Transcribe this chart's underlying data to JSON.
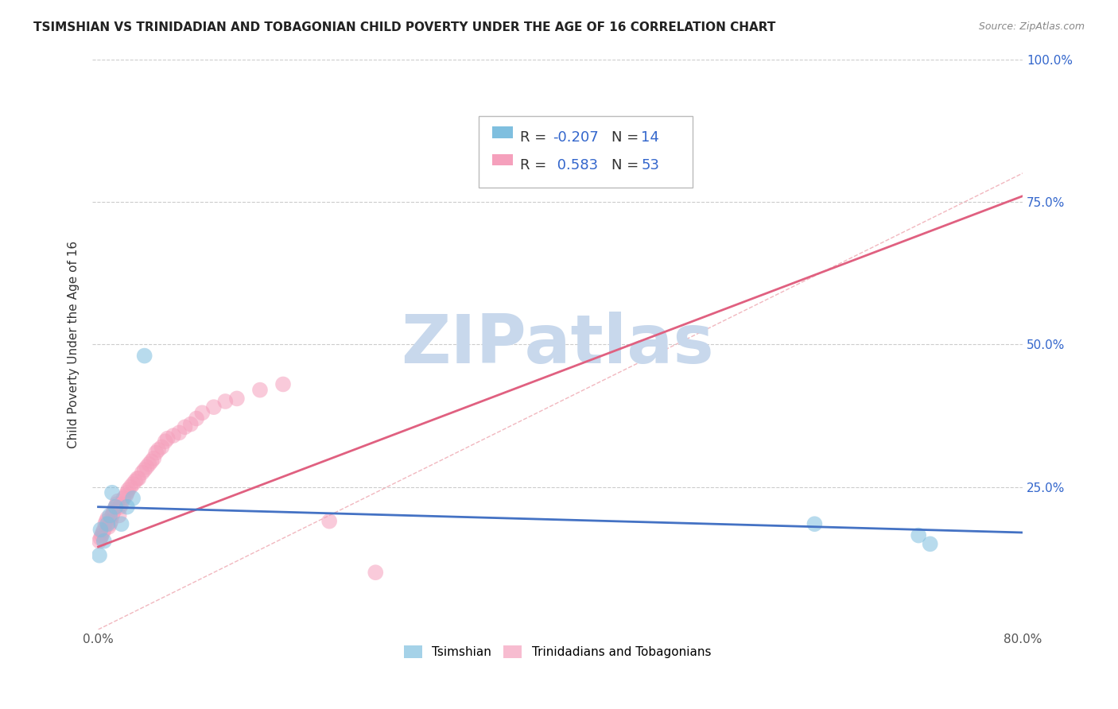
{
  "title": "TSIMSHIAN VS TRINIDADIAN AND TOBAGONIAN CHILD POVERTY UNDER THE AGE OF 16 CORRELATION CHART",
  "source_text": "Source: ZipAtlas.com",
  "ylabel": "Child Poverty Under the Age of 16",
  "xlim": [
    -0.005,
    0.8
  ],
  "ylim": [
    0.0,
    1.0
  ],
  "xticks": [
    0.0,
    0.1,
    0.2,
    0.3,
    0.4,
    0.5,
    0.6,
    0.7,
    0.8
  ],
  "xticklabels": [
    "0.0%",
    "",
    "",
    "",
    "",
    "",
    "",
    "",
    "80.0%"
  ],
  "yticks": [
    0.0,
    0.25,
    0.5,
    0.75,
    1.0
  ],
  "yticklabels_right": [
    "",
    "25.0%",
    "50.0%",
    "75.0%",
    "100.0%"
  ],
  "background_color": "#ffffff",
  "grid_color": "#cccccc",
  "watermark_text": "ZIPatlas",
  "watermark_color": "#c8d8ec",
  "tsimshian_color": "#7fbfdf",
  "trinidadian_color": "#f5a0bc",
  "legend_R_color": "#3366cc",
  "tsimshian_R": -0.207,
  "tsimshian_N": 14,
  "trinidadian_R": 0.583,
  "trinidadian_N": 53,
  "tsimshian_x": [
    0.001,
    0.002,
    0.005,
    0.008,
    0.01,
    0.012,
    0.015,
    0.02,
    0.025,
    0.03,
    0.04,
    0.62,
    0.71,
    0.72
  ],
  "tsimshian_y": [
    0.13,
    0.175,
    0.155,
    0.185,
    0.2,
    0.24,
    0.215,
    0.185,
    0.215,
    0.23,
    0.48,
    0.185,
    0.165,
    0.15
  ],
  "trinidadian_x": [
    0.001,
    0.002,
    0.003,
    0.004,
    0.005,
    0.006,
    0.007,
    0.008,
    0.009,
    0.01,
    0.011,
    0.012,
    0.013,
    0.014,
    0.015,
    0.016,
    0.017,
    0.018,
    0.019,
    0.02,
    0.022,
    0.024,
    0.025,
    0.026,
    0.028,
    0.03,
    0.032,
    0.034,
    0.035,
    0.038,
    0.04,
    0.042,
    0.044,
    0.046,
    0.048,
    0.05,
    0.052,
    0.055,
    0.058,
    0.06,
    0.065,
    0.07,
    0.075,
    0.08,
    0.085,
    0.09,
    0.1,
    0.11,
    0.12,
    0.14,
    0.16,
    0.2,
    0.24
  ],
  "trinidadian_y": [
    0.155,
    0.16,
    0.165,
    0.17,
    0.175,
    0.185,
    0.19,
    0.195,
    0.18,
    0.185,
    0.19,
    0.2,
    0.205,
    0.21,
    0.215,
    0.22,
    0.225,
    0.2,
    0.215,
    0.22,
    0.23,
    0.235,
    0.24,
    0.245,
    0.25,
    0.255,
    0.26,
    0.265,
    0.265,
    0.275,
    0.28,
    0.285,
    0.29,
    0.295,
    0.3,
    0.31,
    0.315,
    0.32,
    0.33,
    0.335,
    0.34,
    0.345,
    0.355,
    0.36,
    0.37,
    0.38,
    0.39,
    0.4,
    0.405,
    0.42,
    0.43,
    0.19,
    0.1
  ],
  "pink_trend_x0": 0.0,
  "pink_trend_x1": 0.8,
  "pink_trend_y0": 0.145,
  "pink_trend_y1": 0.76,
  "blue_trend_x0": 0.0,
  "blue_trend_x1": 0.8,
  "blue_trend_y0": 0.215,
  "blue_trend_y1": 0.17,
  "diag_line_color": "#f0b0b8",
  "pink_line_color": "#e06080",
  "blue_line_color": "#4472c4"
}
